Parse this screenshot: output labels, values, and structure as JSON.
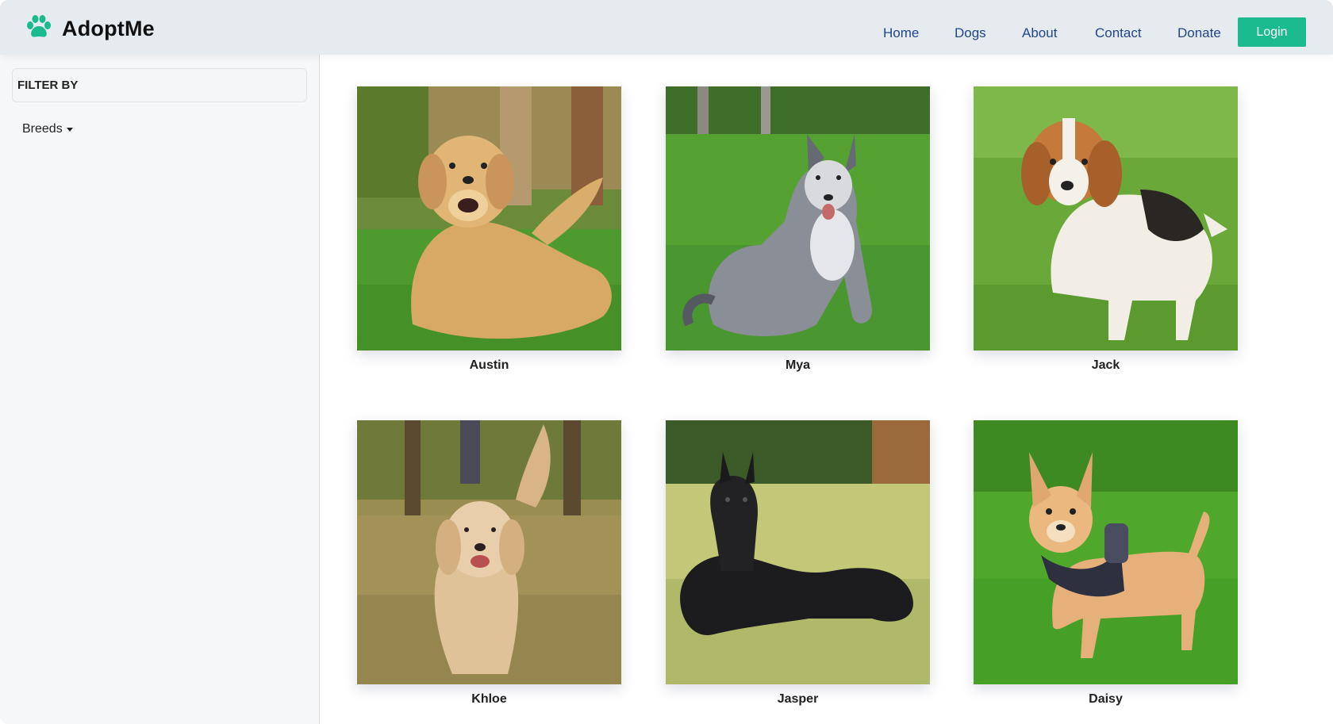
{
  "brand": {
    "name": "AdoptMe",
    "icon": "paw-icon",
    "accent_color": "#1cba8f"
  },
  "nav": {
    "links": [
      "Home",
      "Dogs",
      "About",
      "Contact",
      "Donate"
    ],
    "login_label": "Login",
    "link_color": "#22458c"
  },
  "sidebar": {
    "filter_title": "FILTER BY",
    "breeds_label": "Breeds"
  },
  "dogs": [
    {
      "name": "Austin",
      "photo": "golden-retriever-lying-on-grass-photo"
    },
    {
      "name": "Mya",
      "photo": "husky-sitting-on-grass-photo"
    },
    {
      "name": "Jack",
      "photo": "beagle-puppy-running-photo"
    },
    {
      "name": "Khloe",
      "photo": "golden-retriever-walking-photo"
    },
    {
      "name": "Jasper",
      "photo": "black-schnauzer-lying-photo"
    },
    {
      "name": "Daisy",
      "photo": "chihuahua-with-harness-photo"
    }
  ]
}
